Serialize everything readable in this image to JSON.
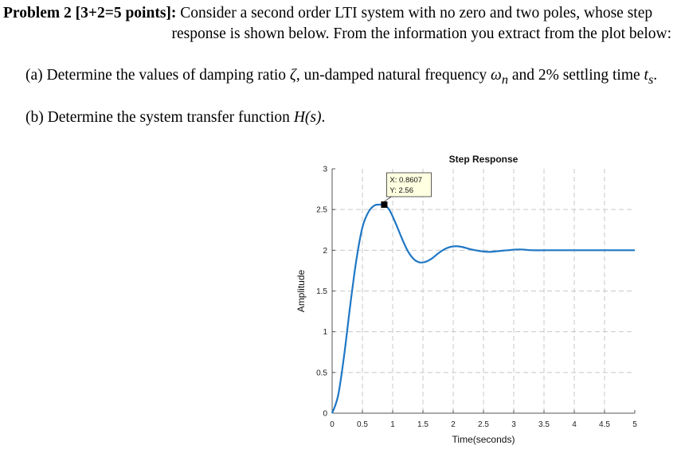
{
  "problem": {
    "heading": "Problem 2 [3+2=5 points]:",
    "line1_rest": " Consider a second order LTI system with no zero and two poles, whose step",
    "line2": "response is shown below. From the information you extract from the plot below:",
    "part_a": {
      "prefix": "(a) Determine the values of damping ratio ",
      "zeta": "ζ",
      "mid": ", un-damped natural frequency ",
      "omega": "ω",
      "omega_sub": "n",
      "and": " and 2% settling time ",
      "t": "t",
      "t_sub": "s",
      "end": "."
    },
    "part_b": {
      "prefix": "(b) Determine the system transfer function ",
      "H": "H(s)",
      "end": "."
    }
  },
  "chart_data": {
    "type": "line",
    "title": "Step Response",
    "xlabel": "Time(seconds)",
    "ylabel": "Amplitude",
    "xlim": [
      0,
      5
    ],
    "ylim": [
      0,
      3
    ],
    "xticks": [
      "0",
      "0.5",
      "1",
      "1.5",
      "2",
      "2.5",
      "3",
      "3.5",
      "4",
      "4.5",
      "5"
    ],
    "yticks": [
      "0",
      "0.5",
      "1",
      "1.5",
      "2",
      "2.5",
      "3"
    ],
    "grid": true,
    "line_color": "#1f77c4",
    "series": [
      {
        "x": [
          0,
          0.1,
          0.2,
          0.3,
          0.4,
          0.5,
          0.6,
          0.7,
          0.8,
          0.8607,
          0.95,
          1.05,
          1.15,
          1.25,
          1.35,
          1.45,
          1.55,
          1.65,
          1.75,
          1.85,
          1.95,
          2.05,
          2.15,
          2.3,
          2.45,
          2.6,
          2.75,
          2.9,
          3.1,
          3.3,
          3.5,
          4.0,
          4.5,
          5.0
        ],
        "y": [
          0,
          0.22,
          0.72,
          1.33,
          1.88,
          2.28,
          2.47,
          2.55,
          2.56,
          2.56,
          2.49,
          2.33,
          2.15,
          1.99,
          1.89,
          1.85,
          1.86,
          1.9,
          1.96,
          2.01,
          2.04,
          2.05,
          2.04,
          2.01,
          1.99,
          1.98,
          1.99,
          2.0,
          2.01,
          2.0,
          2.0,
          2.0,
          2.0,
          2.0
        ]
      }
    ],
    "datatip": {
      "x": 0.8607,
      "y": 2.56,
      "x_text": "X: 0.8607",
      "y_text": "Y: 2.56"
    }
  }
}
